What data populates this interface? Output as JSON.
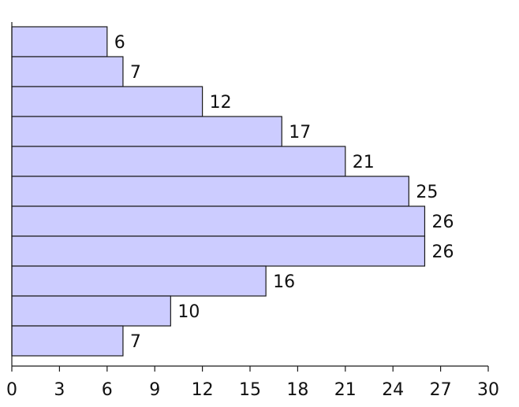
{
  "chart_data": {
    "type": "bar",
    "orientation": "horizontal",
    "values": [
      6,
      7,
      12,
      17,
      21,
      25,
      26,
      26,
      16,
      10,
      7
    ],
    "data_labels": [
      "6",
      "7",
      "12",
      "17",
      "21",
      "25",
      "26",
      "26",
      "16",
      "10",
      "7"
    ],
    "xticks": [
      0,
      3,
      6,
      9,
      12,
      15,
      18,
      21,
      24,
      27,
      30
    ],
    "xtick_labels": [
      "0",
      "3",
      "6",
      "9",
      "12",
      "15",
      "18",
      "21",
      "24",
      "27",
      "30"
    ],
    "xlim": [
      0,
      30
    ],
    "grid": false,
    "colors": {
      "bar_fill": "#ccccff",
      "bar_stroke": "#1a1a1a"
    }
  }
}
